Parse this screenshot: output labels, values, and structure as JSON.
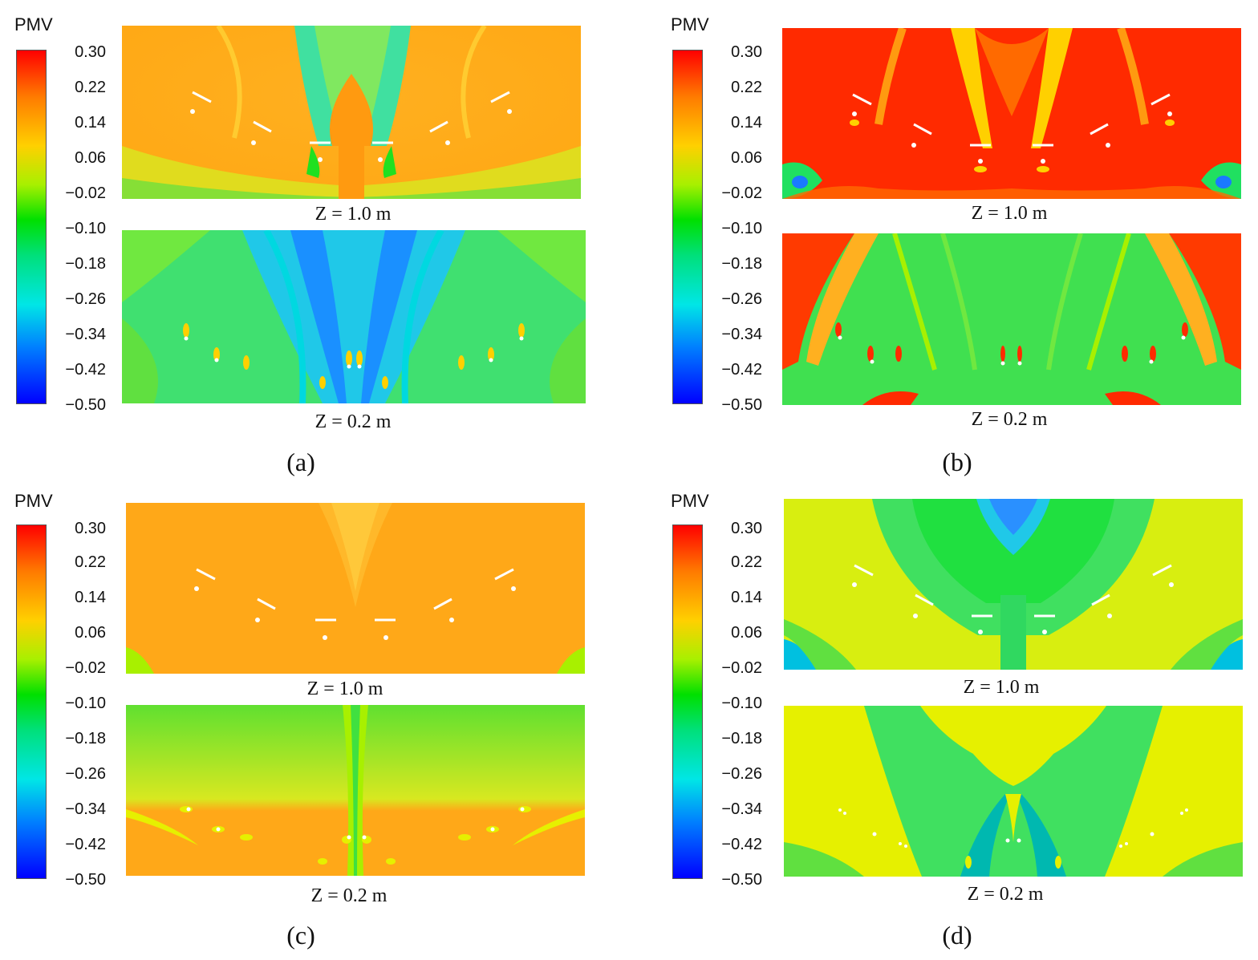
{
  "colorbar": {
    "title": "PMV",
    "ticks": [
      "0.30",
      "0.22",
      "0.14",
      "0.06",
      "−0.02",
      "−0.10",
      "−0.18",
      "−0.26",
      "−0.34",
      "−0.42",
      "−0.50"
    ]
  },
  "colors": {
    "red": "#ff2a00",
    "orange": "#ff9a10",
    "yellow": "#e6f000",
    "green": "#20e020",
    "cyan": "#00d8e0",
    "blue": "#1a7aff"
  },
  "quadrants": [
    {
      "label": "(a)",
      "top_label": "Z = 1.0 m",
      "bottom_label": "Z = 0.2 m"
    },
    {
      "label": "(b)",
      "top_label": "Z = 1.0 m",
      "bottom_label": "Z = 0.2 m"
    },
    {
      "label": "(c)",
      "top_label": "Z = 1.0 m",
      "bottom_label": "Z = 0.2 m"
    },
    {
      "label": "(d)",
      "top_label": "Z = 1.0 m",
      "bottom_label": "Z = 0.2 m"
    }
  ]
}
